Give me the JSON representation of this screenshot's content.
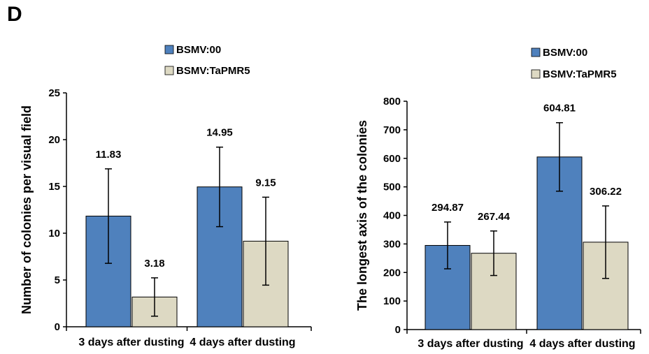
{
  "figure": {
    "panel_letter": "D"
  },
  "colors": {
    "series1": "#4f81bd",
    "series2": "#ddd9c3",
    "axis": "#000000"
  },
  "chart_data": [
    {
      "type": "bar",
      "title": "",
      "xlabel": "",
      "ylabel": "Number of colonies per visual field",
      "categories": [
        "3 days after dusting",
        "4 days after dusting"
      ],
      "ylim": [
        0,
        25
      ],
      "yticks": [
        0,
        5,
        10,
        15,
        20,
        25
      ],
      "legend_position": "top-center",
      "grid": false,
      "series": [
        {
          "name": "BSMV:00",
          "values": [
            11.83,
            14.95
          ],
          "labels": [
            "11.83",
            "14.95"
          ],
          "error": [
            5.05,
            4.25
          ]
        },
        {
          "name": "BSMV:TaPMR5",
          "values": [
            3.18,
            9.15
          ],
          "labels": [
            "3.18",
            "9.15"
          ],
          "error": [
            2.05,
            4.7
          ]
        }
      ]
    },
    {
      "type": "bar",
      "title": "",
      "xlabel": "",
      "ylabel": "The longest axis of the colonies",
      "categories": [
        "3 days after dusting",
        "4 days after dusting"
      ],
      "ylim": [
        0,
        800
      ],
      "yticks": [
        0,
        100,
        200,
        300,
        400,
        500,
        600,
        700,
        800
      ],
      "legend_position": "top-right",
      "grid": false,
      "series": [
        {
          "name": "BSMV:00",
          "values": [
            294.87,
            604.81
          ],
          "labels": [
            "294.87",
            "604.81"
          ],
          "error": [
            82,
            120
          ]
        },
        {
          "name": "BSMV:TaPMR5",
          "values": [
            267.44,
            306.22
          ],
          "labels": [
            "267.44",
            "306.22"
          ],
          "error": [
            78,
            127
          ]
        }
      ]
    }
  ]
}
